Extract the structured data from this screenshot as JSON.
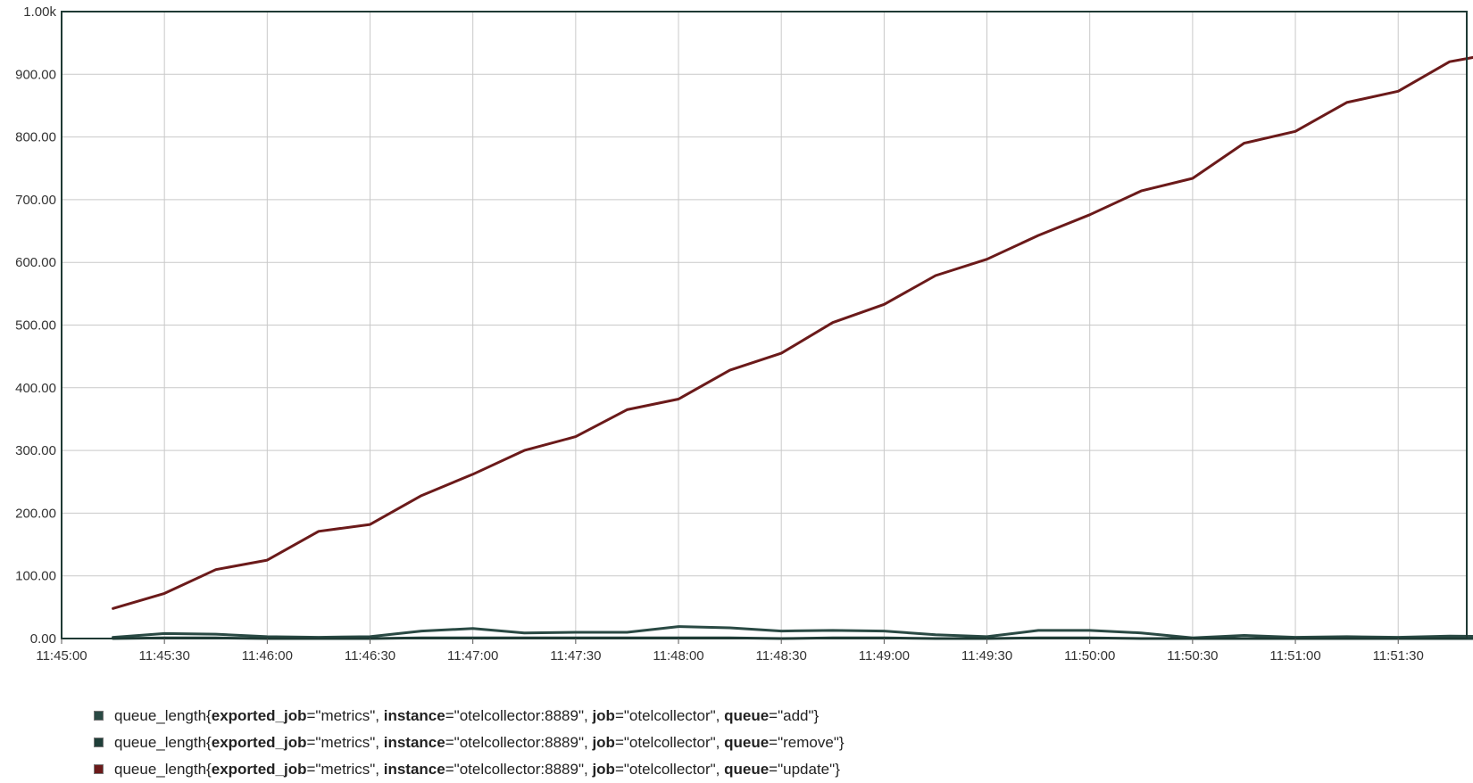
{
  "chart_data": {
    "type": "line",
    "x_ticks": [
      "11:45:00",
      "11:45:30",
      "11:46:00",
      "11:46:30",
      "11:47:00",
      "11:47:30",
      "11:48:00",
      "11:48:30",
      "11:49:00",
      "11:49:30",
      "11:50:00",
      "11:50:30",
      "11:51:00",
      "11:51:30"
    ],
    "y_ticks": [
      "0.00",
      "100.00",
      "200.00",
      "300.00",
      "400.00",
      "500.00",
      "600.00",
      "700.00",
      "800.00",
      "900.00",
      "1.00k"
    ],
    "xlim_seconds_after_11_45_00": [
      0,
      410
    ],
    "ylim": [
      0,
      1000
    ],
    "grid": true,
    "legend_position": "bottom",
    "x": [
      "11:45:15",
      "11:45:30",
      "11:45:45",
      "11:46:00",
      "11:46:15",
      "11:46:30",
      "11:46:45",
      "11:47:00",
      "11:47:15",
      "11:47:30",
      "11:47:45",
      "11:48:00",
      "11:48:15",
      "11:48:30",
      "11:48:45",
      "11:49:00",
      "11:49:15",
      "11:49:30",
      "11:49:45",
      "11:50:00",
      "11:50:15",
      "11:50:30",
      "11:50:45",
      "11:51:00",
      "11:51:15",
      "11:51:30",
      "11:51:45",
      "11:52:00"
    ],
    "series": [
      {
        "name": "queue_length{exported_job=\"metrics\", instance=\"otelcollector:8889\", job=\"otelcollector\", queue=\"add\"}",
        "color": "#2a4a44",
        "values": [
          2,
          8,
          7,
          3,
          2,
          3,
          12,
          16,
          9,
          10,
          10,
          19,
          17,
          12,
          13,
          12,
          6,
          3,
          13,
          13,
          9,
          1,
          5,
          2,
          3,
          2,
          4,
          3
        ]
      },
      {
        "name": "queue_length{exported_job=\"metrics\", instance=\"otelcollector:8889\", job=\"otelcollector\", queue=\"remove\"}",
        "color": "#1f3f39",
        "values": [
          0,
          1,
          1,
          0,
          0,
          0,
          1,
          1,
          1,
          1,
          1,
          1,
          1,
          0,
          1,
          1,
          0,
          0,
          1,
          1,
          0,
          0,
          0,
          0,
          0,
          0,
          0,
          0
        ]
      },
      {
        "name": "queue_length{exported_job=\"metrics\", instance=\"otelcollector:8889\", job=\"otelcollector\", queue=\"update\"}",
        "color": "#6b1a1a",
        "values": [
          48,
          72,
          110,
          125,
          171,
          182,
          228,
          262,
          300,
          322,
          365,
          382,
          428,
          455,
          504,
          533,
          579,
          605,
          643,
          676,
          714,
          734,
          790,
          809,
          855,
          873,
          920,
          935
        ]
      }
    ]
  },
  "legend": [
    {
      "metric": "queue_length",
      "labels": [
        {
          "key": "exported_job",
          "value": "\"metrics\""
        },
        {
          "key": "instance",
          "value": "\"otelcollector:8889\""
        },
        {
          "key": "job",
          "value": "\"otelcollector\""
        },
        {
          "key": "queue",
          "value": "\"add\""
        }
      ],
      "color": "#2a4a44"
    },
    {
      "metric": "queue_length",
      "labels": [
        {
          "key": "exported_job",
          "value": "\"metrics\""
        },
        {
          "key": "instance",
          "value": "\"otelcollector:8889\""
        },
        {
          "key": "job",
          "value": "\"otelcollector\""
        },
        {
          "key": "queue",
          "value": "\"remove\""
        }
      ],
      "color": "#1f3f39"
    },
    {
      "metric": "queue_length",
      "labels": [
        {
          "key": "exported_job",
          "value": "\"metrics\""
        },
        {
          "key": "instance",
          "value": "\"otelcollector:8889\""
        },
        {
          "key": "job",
          "value": "\"otelcollector\""
        },
        {
          "key": "queue",
          "value": "\"update\""
        }
      ],
      "color": "#6b1a1a"
    }
  ]
}
